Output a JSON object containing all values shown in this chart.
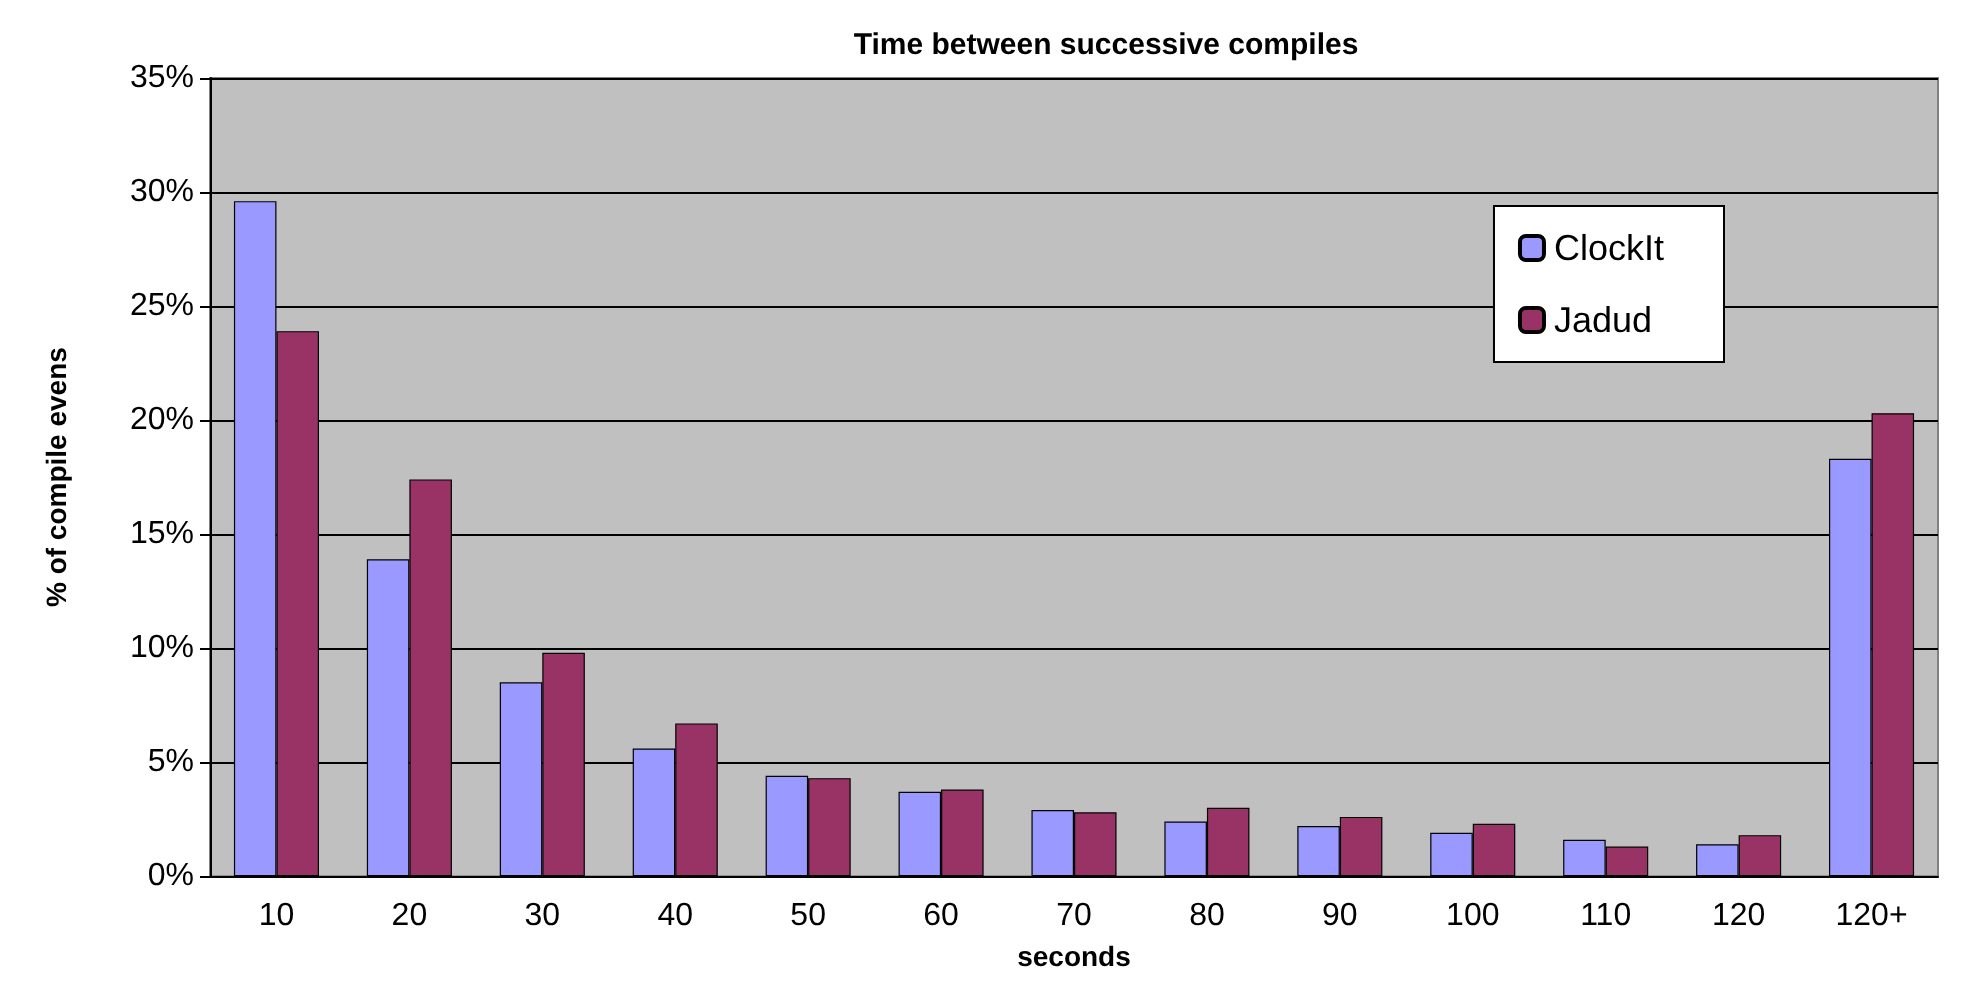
{
  "chart_data": {
    "type": "bar",
    "title": "Time between successive compiles",
    "xlabel": "seconds",
    "ylabel": "% of compile evens",
    "categories": [
      "10",
      "20",
      "30",
      "40",
      "50",
      "60",
      "70",
      "80",
      "90",
      "100",
      "110",
      "120",
      "120+"
    ],
    "series": [
      {
        "name": "ClockIt",
        "color": "#9999ff",
        "values": [
          29.6,
          13.9,
          8.5,
          5.6,
          4.4,
          3.7,
          2.9,
          2.4,
          2.2,
          1.9,
          1.6,
          1.4,
          18.3
        ]
      },
      {
        "name": "Jadud",
        "color": "#993366",
        "values": [
          23.9,
          17.4,
          9.8,
          6.7,
          4.3,
          3.8,
          2.8,
          3.0,
          2.6,
          2.3,
          1.3,
          1.8,
          20.3
        ]
      }
    ],
    "ylim": [
      0,
      35
    ],
    "yticks": [
      {
        "value": 0,
        "label": "0%"
      },
      {
        "value": 5,
        "label": "5%"
      },
      {
        "value": 10,
        "label": "10%"
      },
      {
        "value": 15,
        "label": "15%"
      },
      {
        "value": 20,
        "label": "20%"
      },
      {
        "value": 25,
        "label": "25%"
      },
      {
        "value": 30,
        "label": "30%"
      },
      {
        "value": 35,
        "label": "35%"
      }
    ],
    "grid": "y",
    "legend": "top right"
  }
}
